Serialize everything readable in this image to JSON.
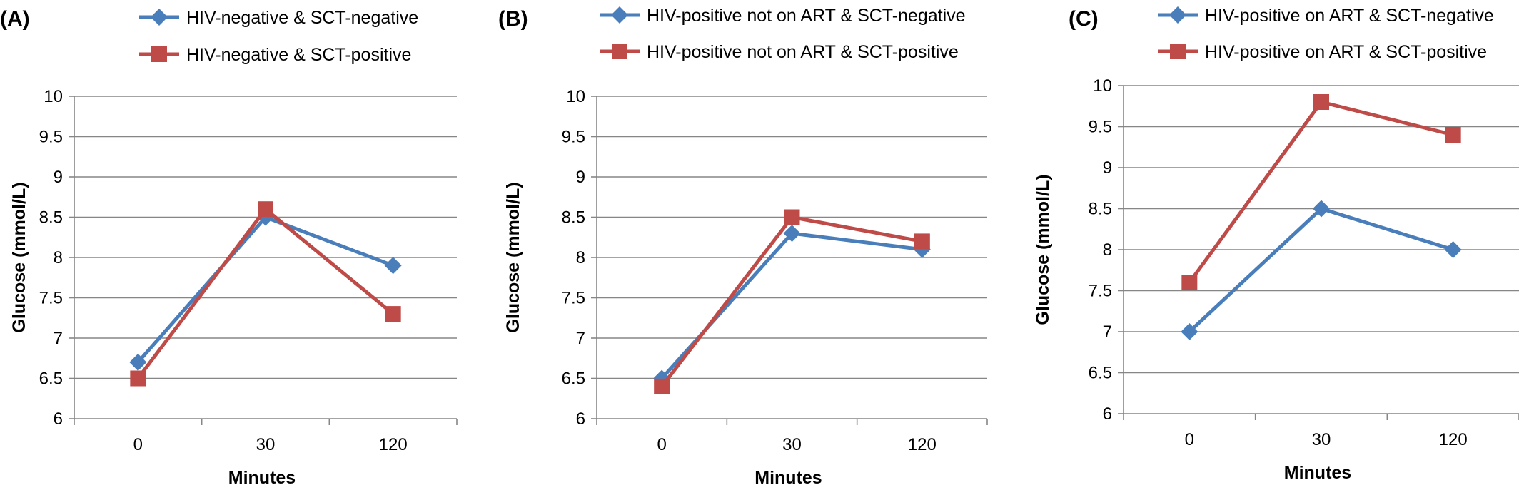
{
  "chart_data": [
    {
      "type": "line",
      "panel_label": "(A)",
      "categories": [
        "0",
        "30",
        "120"
      ],
      "xlabel": "Minutes",
      "ylabel": "Glucose (mmol/L)",
      "ylim": [
        6,
        10
      ],
      "yticks": [
        "6",
        "6.5",
        "7",
        "7.5",
        "8",
        "8.5",
        "9",
        "9.5",
        "10"
      ],
      "grid": true,
      "legend": "top",
      "series": [
        {
          "name": "HIV-negative & SCT-negative",
          "values": [
            6.7,
            8.5,
            7.9
          ],
          "color": "#4a7ebb",
          "marker": "diamond"
        },
        {
          "name": "HIV-negative & SCT-positive",
          "values": [
            6.5,
            8.6,
            7.3
          ],
          "color": "#be4b48",
          "marker": "square"
        }
      ]
    },
    {
      "type": "line",
      "panel_label": "(B)",
      "categories": [
        "0",
        "30",
        "120"
      ],
      "xlabel": "Minutes",
      "ylabel": "Glucose (mmol/L)",
      "ylim": [
        6,
        10
      ],
      "yticks": [
        "6",
        "6.5",
        "7",
        "7.5",
        "8",
        "8.5",
        "9",
        "9.5",
        "10"
      ],
      "grid": true,
      "legend": "top",
      "series": [
        {
          "name": "HIV-positive not on ART & SCT-negative",
          "values": [
            6.5,
            8.3,
            8.1
          ],
          "color": "#4a7ebb",
          "marker": "diamond"
        },
        {
          "name": "HIV-positive not on ART & SCT-positive",
          "values": [
            6.4,
            8.5,
            8.2
          ],
          "color": "#be4b48",
          "marker": "square"
        }
      ]
    },
    {
      "type": "line",
      "panel_label": "(C)",
      "categories": [
        "0",
        "30",
        "120"
      ],
      "xlabel": "Minutes",
      "ylabel": "Glucose (mmol/L)",
      "ylim": [
        6,
        10
      ],
      "yticks": [
        "6",
        "6.5",
        "7",
        "7.5",
        "8",
        "8.5",
        "9",
        "9.5",
        "10"
      ],
      "grid": true,
      "legend": "top",
      "series": [
        {
          "name": "HIV-positive on ART & SCT-negative",
          "values": [
            7.0,
            8.5,
            8.0
          ],
          "color": "#4a7ebb",
          "marker": "diamond"
        },
        {
          "name": "HIV-positive on ART & SCT-positive",
          "values": [
            7.6,
            9.8,
            9.4
          ],
          "color": "#be4b48",
          "marker": "square"
        }
      ]
    }
  ]
}
